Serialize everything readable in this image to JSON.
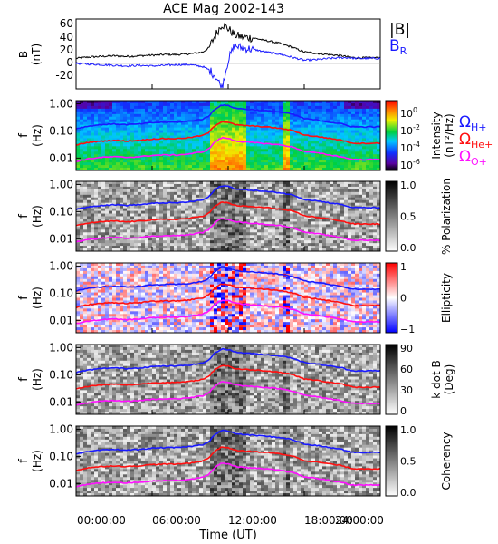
{
  "title": "ACE Mag 2002-143",
  "x_axis": {
    "label": "Time (UT)",
    "ticks": [
      "00:00:00",
      "06:00:00",
      "12:00:00",
      "18:00:00",
      "24:00:00"
    ],
    "range_hours": [
      0,
      24
    ]
  },
  "colors": {
    "B_total": "#000000",
    "B_R": "#1a1aff",
    "H_plus": "#1a1aff",
    "He_plus": "#ff1010",
    "O_plus": "#ff10ff"
  },
  "mag_panel": {
    "ylabel": [
      "B",
      "(nT)"
    ],
    "ylim": [
      -40,
      70
    ],
    "yticks": [
      "60",
      "40",
      "20",
      "0",
      "-20"
    ],
    "legend": {
      "b_total": "|B|",
      "b_r_main": "B",
      "b_r_sub": "R"
    }
  },
  "freq_axis": {
    "ylabel": [
      "f",
      "(Hz)"
    ],
    "ticks": [
      "1.00",
      "0.10",
      "0.01"
    ],
    "ylim_hz": [
      0.0035,
      1.3
    ],
    "log": true
  },
  "ion_legend": [
    {
      "main": "Ω",
      "sub": "H+",
      "color": "#1a1aff"
    },
    {
      "main": "Ω",
      "sub": "He+",
      "color": "#ff1010"
    },
    {
      "main": "Ω",
      "sub": "O+",
      "color": "#ff10ff"
    }
  ],
  "spectro_panels": [
    {
      "name": "intensity",
      "colormap": "rainbow",
      "colorbar_label": [
        "Intensity",
        "(nT²/Hz)"
      ],
      "ticks": [
        {
          "base": "10",
          "exp": "0"
        },
        {
          "base": "10",
          "exp": "-2"
        },
        {
          "base": "10",
          "exp": "-4"
        },
        {
          "base": "10",
          "exp": "-6"
        }
      ]
    },
    {
      "name": "polarization",
      "colormap": "gray",
      "colorbar_label": [
        "% Polarization"
      ],
      "ticks": [
        {
          "base": "1.0",
          "exp": ""
        },
        {
          "base": "0.5",
          "exp": ""
        },
        {
          "base": "0.0",
          "exp": ""
        }
      ]
    },
    {
      "name": "ellipticity",
      "colormap": "bwr",
      "colorbar_label": [
        "Ellipticity"
      ],
      "ticks": [
        {
          "base": "1",
          "exp": ""
        },
        {
          "base": "0",
          "exp": ""
        },
        {
          "base": "−1",
          "exp": ""
        }
      ]
    },
    {
      "name": "k-dot-b",
      "colormap": "gray",
      "colorbar_label": [
        "k dot B",
        "(Deg)"
      ],
      "ticks": [
        {
          "base": "90",
          "exp": ""
        },
        {
          "base": "60",
          "exp": ""
        },
        {
          "base": "30",
          "exp": ""
        },
        {
          "base": "0",
          "exp": ""
        }
      ]
    },
    {
      "name": "coherency",
      "colormap": "gray",
      "colorbar_label": [
        "Coherency"
      ],
      "ticks": [
        {
          "base": "1.0",
          "exp": ""
        },
        {
          "base": "0.5",
          "exp": ""
        },
        {
          "base": "0.0",
          "exp": ""
        }
      ]
    }
  ],
  "chart_data": {
    "type": "line",
    "x_unit_hours": [
      0,
      24
    ],
    "series": [
      {
        "name": "|B|",
        "x": [
          0,
          1,
          2,
          3,
          4,
          5,
          6,
          7,
          8,
          9,
          10,
          10.5,
          11,
          11.5,
          12,
          12.5,
          13,
          14,
          15,
          16,
          17,
          18,
          19,
          20,
          21,
          21.5,
          22,
          23,
          24
        ],
        "y": [
          8,
          10,
          11,
          12,
          11,
          12,
          13,
          14,
          14,
          15,
          18,
          25,
          45,
          62,
          55,
          45,
          42,
          40,
          36,
          32,
          26,
          18,
          16,
          14,
          12,
          10,
          9,
          9,
          9
        ]
      },
      {
        "name": "B_R",
        "x": [
          0,
          1,
          2,
          3,
          4,
          5,
          6,
          7,
          8,
          9,
          10,
          10.5,
          11,
          11.5,
          12,
          12.5,
          13,
          14,
          15,
          16,
          17,
          18,
          19,
          20,
          21,
          21.5,
          22,
          23,
          24
        ],
        "y": [
          0,
          -1,
          -2,
          -3,
          -4,
          -3,
          -4,
          -3,
          -2,
          -2,
          -5,
          -10,
          -20,
          -38,
          5,
          28,
          25,
          22,
          18,
          15,
          10,
          5,
          6,
          8,
          9,
          9,
          8,
          8,
          8
        ]
      },
      {
        "name": "Ω H+",
        "x": [
          0,
          1,
          2,
          3,
          4,
          5,
          6,
          7,
          8,
          9,
          10,
          10.5,
          11,
          11.5,
          12,
          12.5,
          13,
          14,
          15,
          16,
          17,
          18,
          19,
          20,
          21,
          21.5,
          22,
          23,
          24
        ],
        "y": [
          0.12,
          0.15,
          0.17,
          0.18,
          0.17,
          0.18,
          0.2,
          0.21,
          0.21,
          0.23,
          0.27,
          0.35,
          0.65,
          0.9,
          0.85,
          0.7,
          0.65,
          0.6,
          0.55,
          0.5,
          0.42,
          0.28,
          0.25,
          0.21,
          0.18,
          0.15,
          0.14,
          0.14,
          0.14
        ]
      },
      {
        "name": "Ω He+",
        "x": [
          0,
          1,
          2,
          3,
          4,
          5,
          6,
          7,
          8,
          9,
          10,
          10.5,
          11,
          11.5,
          12,
          12.5,
          13,
          14,
          15,
          16,
          17,
          18,
          19,
          20,
          21,
          21.5,
          22,
          23,
          24
        ],
        "y": [
          0.03,
          0.038,
          0.042,
          0.045,
          0.042,
          0.045,
          0.05,
          0.052,
          0.052,
          0.057,
          0.068,
          0.088,
          0.16,
          0.22,
          0.21,
          0.17,
          0.16,
          0.15,
          0.14,
          0.125,
          0.105,
          0.07,
          0.062,
          0.053,
          0.045,
          0.038,
          0.035,
          0.035,
          0.035
        ]
      },
      {
        "name": "Ω O+",
        "x": [
          0,
          1,
          2,
          3,
          4,
          5,
          6,
          7,
          8,
          9,
          10,
          10.5,
          11,
          11.5,
          12,
          12.5,
          13,
          14,
          15,
          16,
          17,
          18,
          19,
          20,
          21,
          21.5,
          22,
          23,
          24
        ],
        "y": [
          0.0075,
          0.0094,
          0.0106,
          0.0112,
          0.0106,
          0.0112,
          0.0125,
          0.013,
          0.013,
          0.0143,
          0.017,
          0.022,
          0.04,
          0.056,
          0.053,
          0.044,
          0.04,
          0.037,
          0.034,
          0.031,
          0.026,
          0.0175,
          0.0155,
          0.013,
          0.011,
          0.0094,
          0.0088,
          0.0088,
          0.0088
        ]
      }
    ]
  }
}
